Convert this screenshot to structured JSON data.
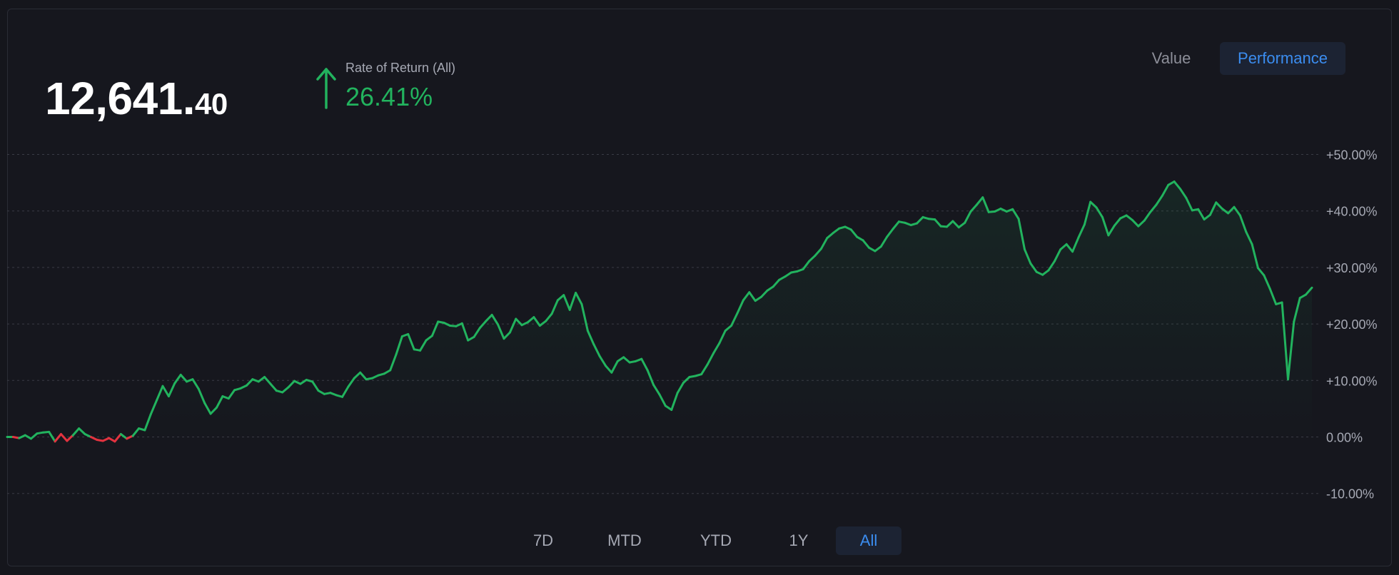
{
  "balance": {
    "integer": "12,641.",
    "decimal": "40"
  },
  "rate_of_return": {
    "label": "Rate of Return (All)",
    "value": "26.41%"
  },
  "mode_toggle": {
    "value_label": "Value",
    "performance_label": "Performance",
    "selected": "Performance"
  },
  "ranges": [
    {
      "label": "7D",
      "active": false
    },
    {
      "label": "MTD",
      "active": false
    },
    {
      "label": "YTD",
      "active": false
    },
    {
      "label": "1Y",
      "active": false
    },
    {
      "label": "All",
      "active": true
    }
  ],
  "colors": {
    "positive": "#22b35e",
    "negative": "#e3323f",
    "accent": "#3b8df0",
    "background": "#16171e"
  },
  "chart_data": {
    "type": "line",
    "title": "",
    "xlabel": "",
    "ylabel": "",
    "ylim": [
      -10,
      50
    ],
    "y_ticks": [
      50,
      40,
      30,
      20,
      10,
      0,
      -10
    ],
    "y_tick_labels": [
      "+50.00%",
      "+40.00%",
      "+30.00%",
      "+20.00%",
      "+10.00%",
      "0.00%",
      "-10.00%"
    ],
    "grid": true,
    "series": [
      {
        "values": [
          0,
          0,
          -0.2,
          0.3,
          -0.3,
          0.6,
          0.8,
          0.9,
          -0.8,
          0.5,
          -0.7,
          0.3,
          1.5,
          0.5,
          0,
          -0.5,
          -0.7,
          -0.2,
          -0.8,
          0.5,
          -0.3,
          0.2,
          1.5,
          1.2,
          4,
          6.5,
          9,
          7.2,
          9.5,
          11,
          9.8,
          10.2,
          8.5,
          6,
          4.1,
          5.2,
          7.2,
          6.8,
          8.3,
          8.6,
          9.1,
          10.2,
          9.8,
          10.6,
          9.4,
          8.2,
          7.9,
          8.8,
          9.9,
          9.4,
          10.1,
          9.8,
          8.2,
          7.6,
          7.8,
          7.4,
          7.1,
          8.9,
          10.4,
          11.4,
          10.2,
          10.4,
          10.9,
          11.2,
          11.8,
          14.6,
          17.8,
          18.2,
          15.5,
          15.3,
          17.1,
          17.9,
          20.4,
          20.2,
          19.7,
          19.6,
          20.1,
          17.1,
          17.7,
          19.3,
          20.5,
          21.6,
          19.9,
          17.4,
          18.5,
          20.9,
          19.8,
          20.3,
          21.2,
          19.7,
          20.5,
          21.8,
          24.2,
          25.1,
          22.5,
          25.5,
          23.5,
          18.8,
          16.4,
          14.3,
          12.6,
          11.4,
          13.4,
          14.1,
          13.2,
          13.4,
          13.8,
          11.8,
          9.2,
          7.5,
          5.5,
          4.8,
          7.8,
          9.6,
          10.6,
          10.8,
          11.1,
          12.8,
          14.8,
          16.6,
          18.8,
          19.7,
          21.9,
          24.2,
          25.6,
          24.1,
          24.8,
          25.9,
          26.6,
          27.8,
          28.4,
          29.1,
          29.3,
          29.7,
          31.1,
          32.1,
          33.3,
          35.2,
          36.1,
          36.9,
          37.2,
          36.7,
          35.4,
          34.8,
          33.5,
          32.9,
          33.7,
          35.4,
          36.8,
          38.1,
          37.9,
          37.5,
          37.8,
          38.9,
          38.6,
          38.5,
          37.3,
          37.2,
          38.2,
          37.1,
          37.9,
          39.9,
          41.1,
          42.4,
          39.8,
          39.9,
          40.4,
          39.9,
          40.3,
          38.6,
          33.2,
          30.7,
          29.2,
          28.7,
          29.5,
          31.1,
          33.2,
          34.1,
          32.8,
          35.3,
          37.6,
          41.6,
          40.6,
          38.9,
          35.7,
          37.4,
          38.7,
          39.2,
          38.4,
          37.3,
          38.3,
          39.8,
          41.1,
          42.7,
          44.6,
          45.2,
          43.9,
          42.3,
          40.1,
          40.3,
          38.5,
          39.3,
          41.5,
          40.4,
          39.6,
          40.7,
          39.2,
          36.3,
          34.1,
          29.9,
          28.6,
          26.2,
          23.5,
          23.8,
          10.2,
          20.4,
          24.6,
          25.2,
          26.41
        ]
      }
    ]
  }
}
